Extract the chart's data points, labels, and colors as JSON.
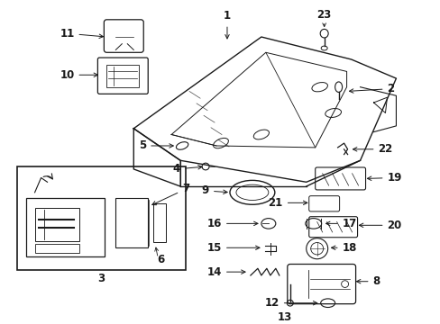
{
  "background_color": "#ffffff",
  "fig_width": 4.89,
  "fig_height": 3.6,
  "dpi": 100,
  "line_color": "#1a1a1a",
  "font_size": 8.5,
  "font_weight": "bold"
}
